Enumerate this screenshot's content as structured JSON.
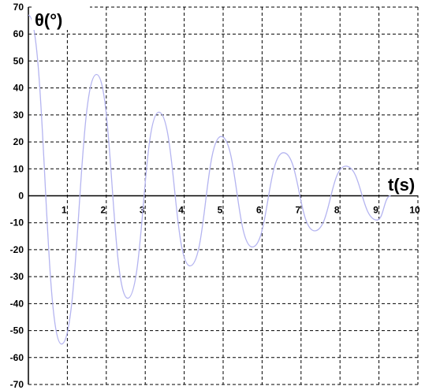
{
  "chart_data": {
    "type": "line",
    "ylabel": "θ(°)",
    "xlabel": "t(s)",
    "xlim": [
      0,
      10
    ],
    "ylim": [
      -70,
      70
    ],
    "x_ticks": [
      "1",
      "2",
      "3",
      "4",
      "5",
      "6",
      "7",
      "8",
      "9",
      "10"
    ],
    "y_ticks": [
      "70",
      "60",
      "50",
      "40",
      "30",
      "20",
      "10",
      "0",
      "-10",
      "-20",
      "-30",
      "-40",
      "-50",
      "-60",
      "-70"
    ],
    "grid": true,
    "series": [
      {
        "color": "#b4b4f0",
        "x": [
          0.0,
          0.85,
          1.75,
          2.55,
          3.35,
          4.15,
          4.95,
          5.75,
          6.55,
          7.35,
          8.15,
          8.95,
          9.3
        ],
        "y": [
          67,
          -55,
          45,
          -38,
          31,
          -26,
          22,
          -19,
          16,
          -13,
          11,
          -9,
          0
        ]
      }
    ]
  }
}
